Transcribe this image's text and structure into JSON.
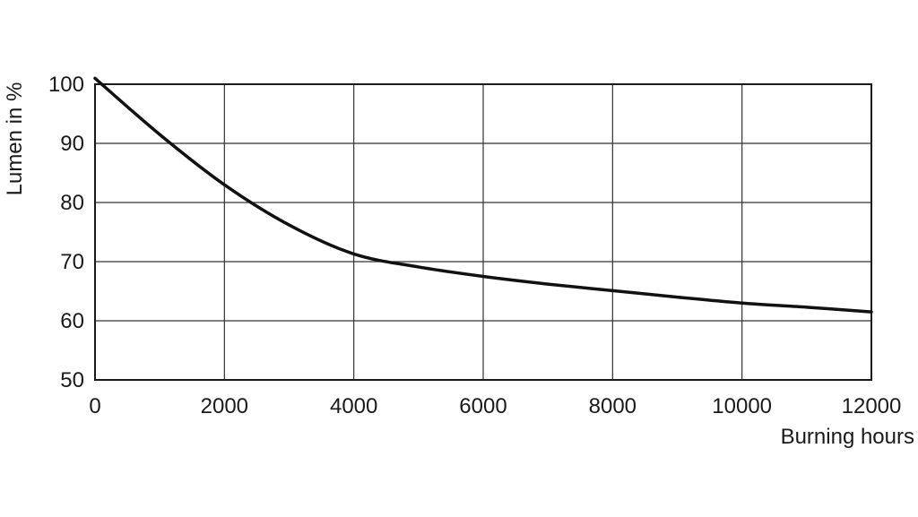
{
  "chart_data": {
    "type": "line",
    "xlabel": "Burning hours",
    "ylabel": "Lumen in %",
    "xlim": [
      0,
      12000
    ],
    "ylim": [
      50,
      100
    ],
    "x_ticks": [
      0,
      2000,
      4000,
      6000,
      8000,
      10000,
      12000
    ],
    "x_tick_labels": [
      "0",
      "2000",
      "4000",
      "6000",
      "8000",
      "10000",
      "12000"
    ],
    "y_ticks": [
      50,
      60,
      70,
      80,
      90,
      100
    ],
    "y_tick_labels": [
      "50",
      "60",
      "70",
      "80",
      "90",
      "100"
    ],
    "grid": true,
    "legend": "none",
    "series": [
      {
        "color": "#111111",
        "x": [
          0,
          1000,
          2000,
          3000,
          4000,
          5000,
          6000,
          7000,
          8000,
          9000,
          10000,
          11000,
          12000
        ],
        "y": [
          101,
          91.5,
          83,
          76.2,
          71.3,
          69.1,
          67.5,
          66.2,
          65.1,
          64.0,
          63.0,
          62.3,
          61.5
        ]
      }
    ]
  }
}
